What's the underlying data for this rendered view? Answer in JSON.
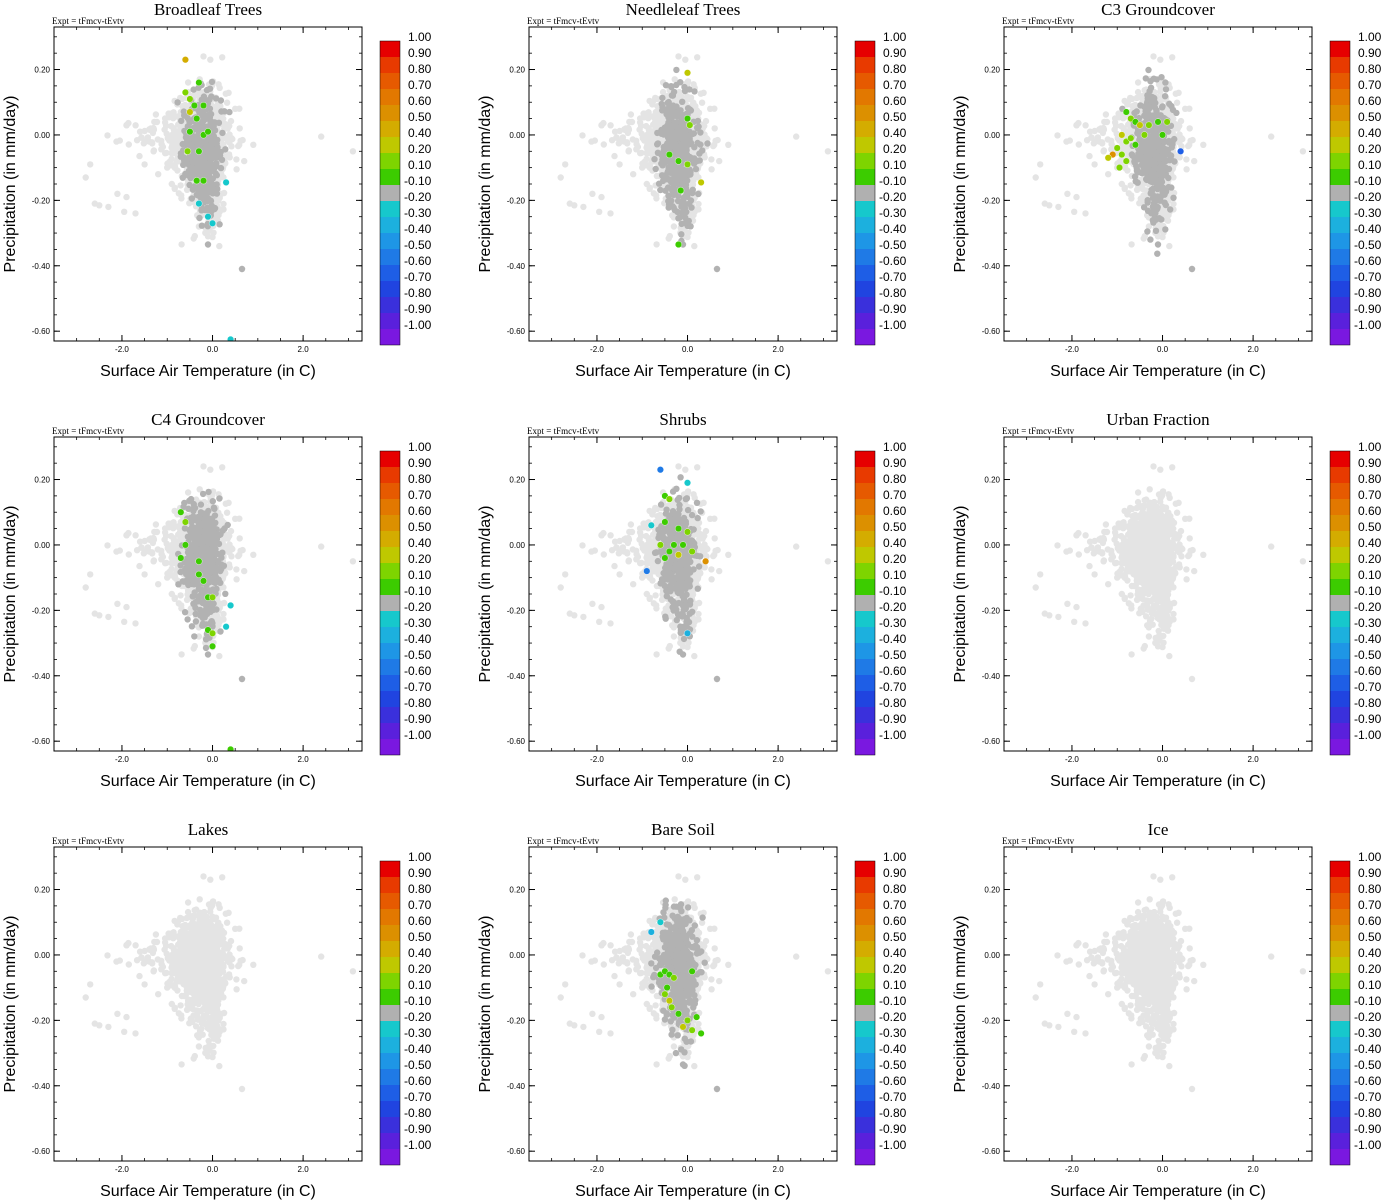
{
  "chart_data": {
    "type": "scatter",
    "figure_layout": {
      "rows": 3,
      "cols": 3
    },
    "expt_label": "Expt = tFmcv-tEvtv",
    "xlabel": "Surface Air Temperature (in C)",
    "ylabel": "Precipitation (in mm/day)",
    "xlim": [
      -3.5,
      3.3
    ],
    "ylim": [
      -0.63,
      0.33
    ],
    "xticks": [
      -2.0,
      0.0,
      2.0
    ],
    "xtick_labels": [
      "-2.0",
      "0.0",
      "2.0"
    ],
    "yticks": [
      0.2,
      0.0,
      -0.2,
      -0.4,
      -0.6
    ],
    "ytick_labels": [
      "0.20",
      "0.00",
      "-0.20",
      "-0.40",
      "-0.60"
    ],
    "colorbar": {
      "labels": [
        "1.00",
        "0.90",
        "0.80",
        "0.70",
        "0.60",
        "0.50",
        "0.40",
        "0.20",
        "0.10",
        "-0.10",
        "-0.20",
        "-0.30",
        "-0.40",
        "-0.50",
        "-0.60",
        "-0.70",
        "-0.80",
        "-0.90",
        "-1.00"
      ],
      "colors": [
        "#e60000",
        "#e83a00",
        "#e65a00",
        "#e27800",
        "#dc9000",
        "#d4ac00",
        "#bfc800",
        "#7ed400",
        "#3ccc00",
        "#b0b0b0",
        "#16c8cc",
        "#1cb0de",
        "#1e96e6",
        "#1f7ae6",
        "#1e5ee6",
        "#2044e0",
        "#3a30dc",
        "#5a20dc",
        "#7a18e0"
      ]
    },
    "base_cloud_color": "#e4e4e4",
    "neutral_color": "#b2b2b2",
    "panels": [
      {
        "title": "Broadleaf Trees",
        "neutral_density": 1.0,
        "colored_points": [
          {
            "x": -0.6,
            "y": 0.23,
            "v": 0.45
          },
          {
            "x": -0.6,
            "y": 0.13,
            "v": 0.3
          },
          {
            "x": -0.5,
            "y": 0.11,
            "v": 0.2
          },
          {
            "x": -0.4,
            "y": 0.09,
            "v": 0.1
          },
          {
            "x": -0.2,
            "y": 0.09,
            "v": 0.1
          },
          {
            "x": -0.5,
            "y": 0.07,
            "v": 0.35
          },
          {
            "x": -0.35,
            "y": 0.05,
            "v": 0.1
          },
          {
            "x": -0.3,
            "y": 0.16,
            "v": 0.1
          },
          {
            "x": -0.5,
            "y": 0.01,
            "v": 0.1
          },
          {
            "x": -0.2,
            "y": 0.0,
            "v": 0.15
          },
          {
            "x": -0.1,
            "y": 0.01,
            "v": 0.1
          },
          {
            "x": -0.55,
            "y": -0.05,
            "v": 0.3
          },
          {
            "x": -0.3,
            "y": -0.05,
            "v": 0.1
          },
          {
            "x": -0.35,
            "y": -0.14,
            "v": 0.1
          },
          {
            "x": -0.2,
            "y": -0.14,
            "v": 0.1
          },
          {
            "x": 0.3,
            "y": -0.145,
            "v": -0.2
          },
          {
            "x": -0.3,
            "y": -0.21,
            "v": -0.2
          },
          {
            "x": -0.1,
            "y": -0.25,
            "v": -0.25
          },
          {
            "x": 0.0,
            "y": -0.27,
            "v": -0.2
          },
          {
            "x": 0.4,
            "y": -0.625,
            "v": -0.2
          }
        ]
      },
      {
        "title": "Needleleaf Trees",
        "neutral_density": 1.0,
        "colored_points": [
          {
            "x": 0.0,
            "y": 0.19,
            "v": 0.35
          },
          {
            "x": 0.0,
            "y": 0.05,
            "v": 0.1
          },
          {
            "x": 0.05,
            "y": 0.03,
            "v": 0.2
          },
          {
            "x": -0.4,
            "y": -0.06,
            "v": 0.1
          },
          {
            "x": -0.2,
            "y": -0.08,
            "v": 0.1
          },
          {
            "x": 0.0,
            "y": -0.09,
            "v": 0.3
          },
          {
            "x": 0.3,
            "y": -0.145,
            "v": 0.35
          },
          {
            "x": -0.15,
            "y": -0.17,
            "v": 0.1
          },
          {
            "x": -0.2,
            "y": -0.335,
            "v": 0.1
          }
        ]
      },
      {
        "title": "C3 Groundcover",
        "neutral_density": 1.1,
        "colored_points": [
          {
            "x": -0.8,
            "y": 0.07,
            "v": 0.1
          },
          {
            "x": -0.7,
            "y": 0.05,
            "v": 0.3
          },
          {
            "x": -0.6,
            "y": 0.04,
            "v": 0.1
          },
          {
            "x": -0.5,
            "y": 0.03,
            "v": 0.35
          },
          {
            "x": -0.3,
            "y": 0.03,
            "v": 0.2
          },
          {
            "x": -0.1,
            "y": 0.04,
            "v": 0.1
          },
          {
            "x": 0.1,
            "y": 0.04,
            "v": 0.2
          },
          {
            "x": -0.9,
            "y": 0.0,
            "v": 0.4
          },
          {
            "x": -0.8,
            "y": -0.02,
            "v": 0.3
          },
          {
            "x": -0.7,
            "y": -0.01,
            "v": 0.2
          },
          {
            "x": -1.0,
            "y": -0.04,
            "v": 0.3
          },
          {
            "x": -0.9,
            "y": -0.06,
            "v": 0.2
          },
          {
            "x": -1.1,
            "y": -0.06,
            "v": 0.55
          },
          {
            "x": -0.8,
            "y": -0.08,
            "v": 0.3
          },
          {
            "x": -0.95,
            "y": -0.1,
            "v": 0.2
          },
          {
            "x": -0.6,
            "y": -0.03,
            "v": 0.1
          },
          {
            "x": -0.4,
            "y": 0.0,
            "v": 0.2
          },
          {
            "x": -1.2,
            "y": -0.07,
            "v": 0.4
          },
          {
            "x": 0.4,
            "y": -0.05,
            "v": -0.55
          },
          {
            "x": 0.0,
            "y": 0.0,
            "v": 0.1
          }
        ]
      },
      {
        "title": "C4 Groundcover",
        "neutral_density": 1.1,
        "colored_points": [
          {
            "x": -0.7,
            "y": 0.1,
            "v": 0.1
          },
          {
            "x": -0.6,
            "y": 0.07,
            "v": 0.3
          },
          {
            "x": -0.6,
            "y": 0.0,
            "v": 0.1
          },
          {
            "x": -0.7,
            "y": -0.04,
            "v": 0.1
          },
          {
            "x": -0.3,
            "y": -0.05,
            "v": 0.1
          },
          {
            "x": -0.3,
            "y": -0.09,
            "v": 0.1
          },
          {
            "x": -0.2,
            "y": -0.11,
            "v": 0.1
          },
          {
            "x": -0.1,
            "y": -0.16,
            "v": 0.1
          },
          {
            "x": 0.0,
            "y": -0.16,
            "v": 0.3
          },
          {
            "x": 0.4,
            "y": -0.185,
            "v": -0.2
          },
          {
            "x": 0.3,
            "y": -0.25,
            "v": -0.2
          },
          {
            "x": -0.1,
            "y": -0.26,
            "v": 0.1
          },
          {
            "x": 0.0,
            "y": -0.27,
            "v": 0.3
          },
          {
            "x": 0.0,
            "y": -0.31,
            "v": 0.1
          },
          {
            "x": 0.4,
            "y": -0.625,
            "v": 0.15
          }
        ]
      },
      {
        "title": "Shrubs",
        "neutral_density": 1.0,
        "colored_points": [
          {
            "x": -0.6,
            "y": 0.23,
            "v": -0.5
          },
          {
            "x": 0.0,
            "y": 0.19,
            "v": -0.2
          },
          {
            "x": -0.5,
            "y": 0.15,
            "v": 0.1
          },
          {
            "x": -0.4,
            "y": 0.14,
            "v": 0.2
          },
          {
            "x": -0.5,
            "y": 0.07,
            "v": 0.1
          },
          {
            "x": -0.2,
            "y": 0.05,
            "v": 0.1
          },
          {
            "x": -0.8,
            "y": 0.06,
            "v": -0.2
          },
          {
            "x": 0.0,
            "y": 0.04,
            "v": 0.2
          },
          {
            "x": -0.3,
            "y": 0.0,
            "v": 0.1
          },
          {
            "x": -0.1,
            "y": 0.0,
            "v": 0.1
          },
          {
            "x": -0.6,
            "y": 0.0,
            "v": 0.3
          },
          {
            "x": -0.4,
            "y": -0.02,
            "v": 0.1
          },
          {
            "x": 0.1,
            "y": -0.02,
            "v": 0.2
          },
          {
            "x": -0.5,
            "y": -0.04,
            "v": 0.1
          },
          {
            "x": 0.4,
            "y": -0.05,
            "v": 0.6
          },
          {
            "x": -0.9,
            "y": -0.08,
            "v": -0.5
          },
          {
            "x": 0.0,
            "y": -0.27,
            "v": -0.3
          },
          {
            "x": -0.2,
            "y": -0.03,
            "v": 0.35
          }
        ]
      },
      {
        "title": "Urban Fraction",
        "neutral_density": 0.0,
        "colored_points": []
      },
      {
        "title": "Lakes",
        "neutral_density": 0.0,
        "colored_points": []
      },
      {
        "title": "Bare Soil",
        "neutral_density": 1.2,
        "colored_points": [
          {
            "x": -0.6,
            "y": 0.1,
            "v": -0.2
          },
          {
            "x": -0.8,
            "y": 0.07,
            "v": -0.3
          },
          {
            "x": -0.6,
            "y": -0.06,
            "v": 0.1
          },
          {
            "x": -0.5,
            "y": -0.05,
            "v": 0.1
          },
          {
            "x": -0.4,
            "y": -0.06,
            "v": 0.1
          },
          {
            "x": -0.3,
            "y": -0.07,
            "v": 0.2
          },
          {
            "x": 0.1,
            "y": -0.05,
            "v": 0.1
          },
          {
            "x": -0.5,
            "y": -0.12,
            "v": 0.3
          },
          {
            "x": -0.4,
            "y": -0.14,
            "v": 0.4
          },
          {
            "x": -0.35,
            "y": -0.16,
            "v": 0.3
          },
          {
            "x": -0.2,
            "y": -0.18,
            "v": 0.1
          },
          {
            "x": 0.0,
            "y": -0.2,
            "v": 0.3
          },
          {
            "x": 0.1,
            "y": -0.23,
            "v": 0.2
          },
          {
            "x": 0.3,
            "y": -0.24,
            "v": 0.1
          },
          {
            "x": -0.1,
            "y": -0.22,
            "v": 0.35
          },
          {
            "x": 0.2,
            "y": -0.19,
            "v": 0.1
          },
          {
            "x": -0.45,
            "y": -0.1,
            "v": 0.1
          }
        ]
      },
      {
        "title": "Ice",
        "neutral_density": 0.0,
        "colored_points": []
      }
    ]
  }
}
